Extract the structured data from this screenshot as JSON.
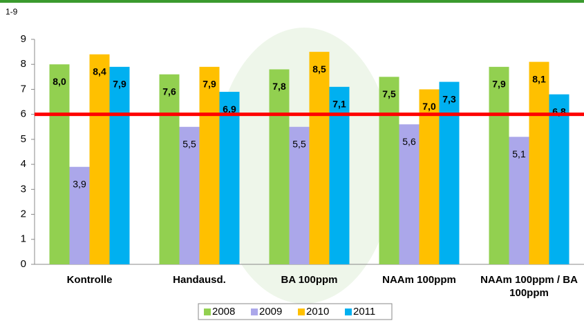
{
  "chart_data": {
    "type": "bar",
    "y_unit_label": "1-9",
    "categories": [
      "Kontrolle",
      "Handausd.",
      "BA 100ppm",
      "NAAm 100ppm",
      "NAAm 100ppm / BA 100ppm"
    ],
    "series": [
      {
        "name": "2008",
        "color": "#92d050",
        "values": [
          8.0,
          7.6,
          7.8,
          7.5,
          7.9
        ],
        "value_labels": [
          "8,0",
          "7,6",
          "7,8",
          "7,5",
          "7,9"
        ]
      },
      {
        "name": "2009",
        "color": "#aba7ea",
        "values": [
          3.9,
          5.5,
          5.5,
          5.6,
          5.1
        ],
        "value_labels": [
          "3,9",
          "5,5",
          "5,5",
          "5,6",
          "5,1"
        ]
      },
      {
        "name": "2010",
        "color": "#ffc000",
        "values": [
          8.4,
          7.9,
          8.5,
          7.0,
          8.1
        ],
        "value_labels": [
          "8,4",
          "7,9",
          "8,5",
          "7,0",
          "8,1"
        ]
      },
      {
        "name": "2011",
        "color": "#00b0f0",
        "values": [
          7.9,
          6.9,
          7.1,
          7.3,
          6.8
        ],
        "value_labels": [
          "7,9",
          "6,9",
          "7,1",
          "7,3",
          "6,8"
        ]
      }
    ],
    "reference_line": {
      "value": 6,
      "color": "#ff0000"
    },
    "ylim": [
      0,
      9
    ],
    "yticks": [
      0,
      1,
      2,
      3,
      4,
      5,
      6,
      7,
      8,
      9
    ],
    "grid": false,
    "legend": "bottom"
  }
}
